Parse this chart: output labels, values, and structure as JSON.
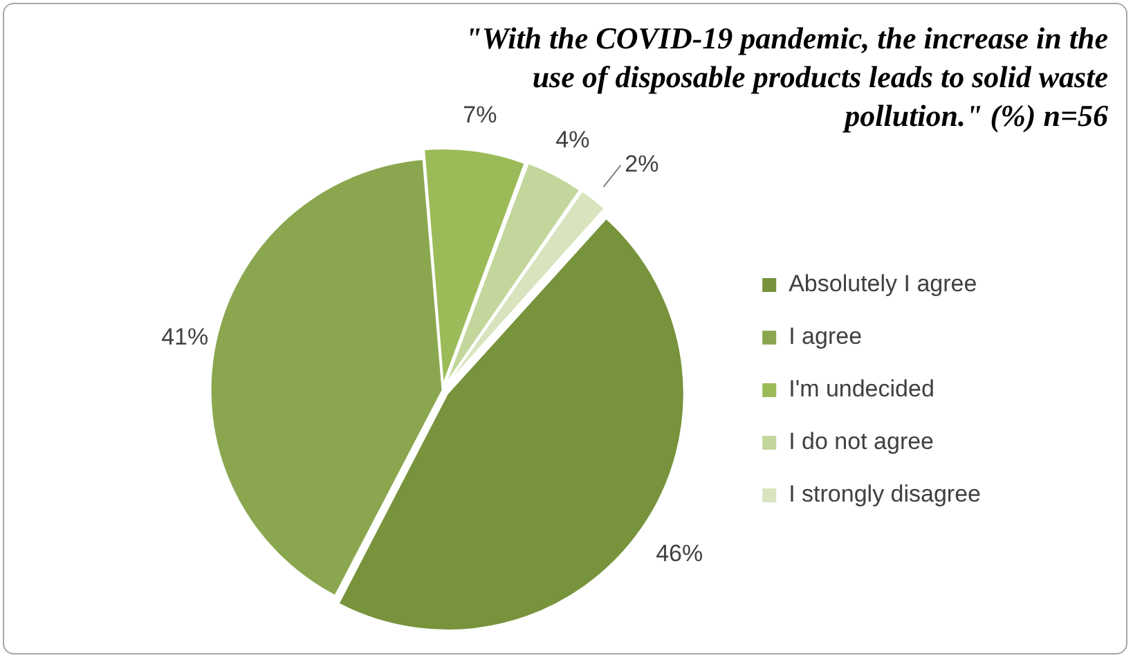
{
  "chart_data": {
    "type": "pie",
    "title": "\"With the COVID-19 pandemic, the increase in the use of disposable products leads to solid waste pollution.\" (%) n=56",
    "categories": [
      "Absolutely I agree",
      "I agree",
      "I'm undecided",
      "I do not agree",
      "I strongly disagree"
    ],
    "values": [
      46,
      41,
      7,
      4,
      2
    ],
    "colors": [
      "#77933c",
      "#8aa750",
      "#9bbb59",
      "#c3d69b",
      "#d7e4bd"
    ],
    "value_labels": [
      "46%",
      "41%",
      "7%",
      "4%",
      "2%"
    ],
    "legend": "right"
  }
}
